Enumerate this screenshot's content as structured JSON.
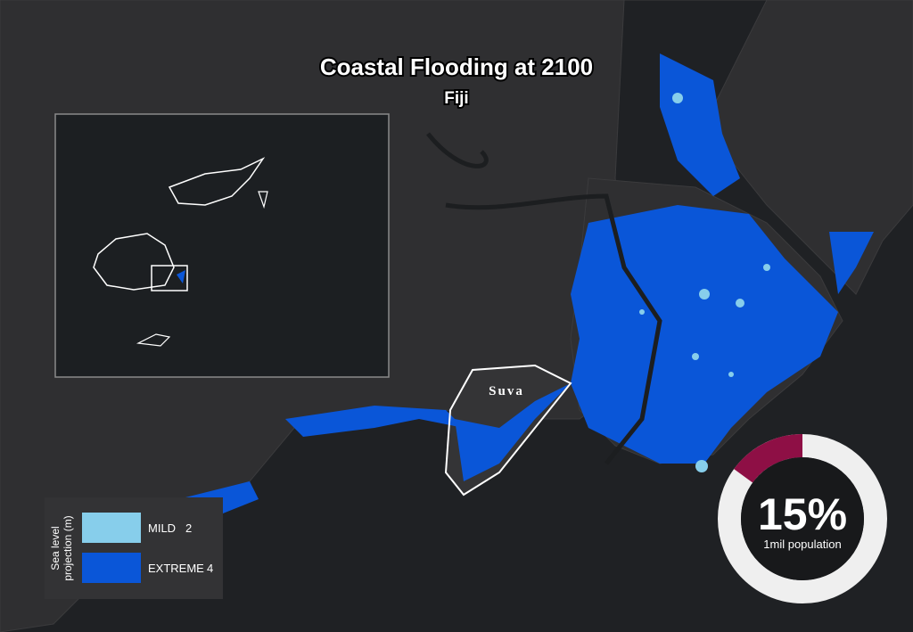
{
  "header": {
    "title": "Coastal Flooding at 2100",
    "subtitle": "Fiji"
  },
  "map": {
    "city": "Suva"
  },
  "legend": {
    "title": [
      "Sea level",
      "projection (m)"
    ],
    "items": [
      {
        "label": "MILD",
        "value": 2,
        "color": "#87ceeb"
      },
      {
        "label": "EXTREME",
        "value": 4,
        "color": "#0a56d8"
      }
    ]
  },
  "stat": {
    "value": 15,
    "label": "15%",
    "caption": "1mil population",
    "color": "#8e0f45",
    "track_color": "#efefef"
  }
}
